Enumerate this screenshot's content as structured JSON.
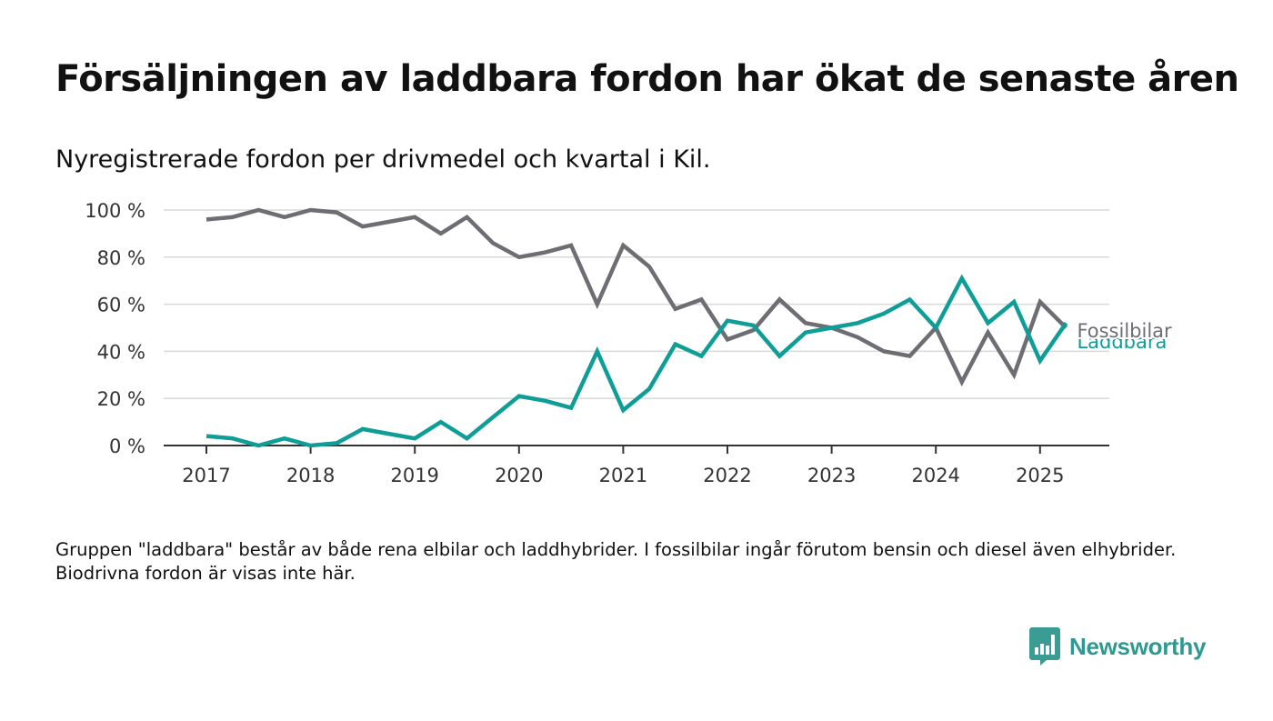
{
  "title": "Försäljningen av laddbara fordon har ökat de senaste åren",
  "subtitle": "Nyregistrerade fordon per drivmedel och kvartal i Kil.",
  "footnote": "Gruppen \"laddbara\" består av både rena elbilar och laddhybrider. I fossilbilar ingår förutom bensin och diesel även elhybrider. Biodrivna fordon är visas inte här.",
  "brand": {
    "name": "Newsworthy",
    "icon": "newsworthy-logo-icon",
    "color": "#3a9c92"
  },
  "chart_data": {
    "type": "line",
    "x": [
      "2017-Q1",
      "2017-Q2",
      "2017-Q3",
      "2017-Q4",
      "2018-Q1",
      "2018-Q2",
      "2018-Q3",
      "2018-Q4",
      "2019-Q1",
      "2019-Q2",
      "2019-Q3",
      "2019-Q4",
      "2020-Q1",
      "2020-Q2",
      "2020-Q3",
      "2020-Q4",
      "2021-Q1",
      "2021-Q2",
      "2021-Q3",
      "2021-Q4",
      "2022-Q1",
      "2022-Q2",
      "2022-Q3",
      "2022-Q4",
      "2023-Q1",
      "2023-Q2",
      "2023-Q3",
      "2023-Q4",
      "2024-Q1",
      "2024-Q2",
      "2024-Q3",
      "2024-Q4",
      "2025-Q1",
      "2025-Q2"
    ],
    "series": [
      {
        "name": "Fossilbilar",
        "color": "#6e6d73",
        "values": [
          96,
          97,
          100,
          97,
          100,
          99,
          93,
          95,
          97,
          90,
          97,
          86,
          80,
          82,
          85,
          60,
          85,
          76,
          58,
          62,
          45,
          49,
          62,
          52,
          50,
          46,
          40,
          38,
          50,
          27,
          48,
          30,
          61,
          50
        ]
      },
      {
        "name": "Laddbara",
        "color": "#0f9e97",
        "values": [
          4,
          3,
          0,
          3,
          0,
          1,
          7,
          5,
          3,
          10,
          3,
          12,
          21,
          19,
          16,
          40,
          15,
          24,
          43,
          38,
          53,
          51,
          38,
          48,
          50,
          52,
          56,
          62,
          50,
          71,
          52,
          61,
          36,
          52
        ]
      }
    ],
    "xticks": [
      "2017",
      "2018",
      "2019",
      "2020",
      "2021",
      "2022",
      "2023",
      "2024",
      "2025"
    ],
    "yticks": [
      "0 %",
      "20 %",
      "40 %",
      "60 %",
      "80 %",
      "100 %"
    ],
    "ylim": [
      0,
      100
    ],
    "grid": true,
    "axis_color": "#333333",
    "grid_color": "#d9d9d9"
  }
}
